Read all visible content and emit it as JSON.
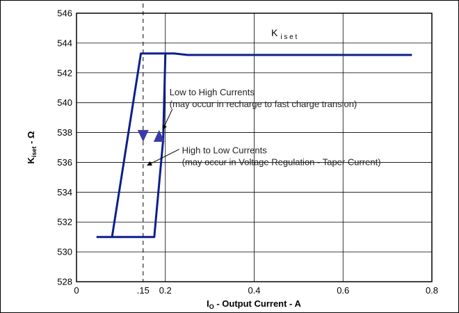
{
  "chart_data": {
    "type": "line",
    "xlim": [
      0,
      0.8
    ],
    "ylim": [
      528,
      546
    ],
    "x_ticks": [
      {
        "value": 0,
        "label": "0"
      },
      {
        "value": 0.15,
        "label": ".15"
      },
      {
        "value": 0.2,
        "label": "0.2"
      },
      {
        "value": 0.4,
        "label": "0.4"
      },
      {
        "value": 0.6,
        "label": "0.6"
      },
      {
        "value": 0.8,
        "label": "0.8"
      }
    ],
    "y_ticks": [
      528,
      530,
      532,
      534,
      536,
      538,
      540,
      542,
      544,
      546
    ],
    "xlabel": {
      "main": "I",
      "sub": "O",
      "rest": " - Output Current - A"
    },
    "ylabel": {
      "main": "K",
      "sub": "iset",
      "rest": " - Ω"
    },
    "grid": true,
    "legend": {
      "main": "K",
      "sub": "i s e t",
      "placement": "top-right"
    },
    "marker_line_x": 0.15,
    "series": [
      {
        "points": [
          [
            0.045,
            531.0
          ],
          [
            0.08,
            531.0
          ],
          [
            0.145,
            543.3
          ],
          [
            0.22,
            543.3
          ],
          [
            0.25,
            543.2
          ],
          [
            0.755,
            543.2
          ]
        ],
        "color": "#0b1f8a"
      },
      {
        "points": [
          [
            0.08,
            531.0
          ],
          [
            0.175,
            531.0
          ],
          [
            0.195,
            537.5
          ],
          [
            0.2,
            543.3
          ]
        ],
        "color": "#0b1f8a"
      }
    ],
    "arrows": [
      {
        "x": 0.15,
        "y": 537.8,
        "direction": "down",
        "color": "#3a3aa8"
      },
      {
        "x": 0.186,
        "y": 537.8,
        "direction": "up",
        "color": "#3a3aa8"
      }
    ],
    "annotations": [
      {
        "lines": [
          "Low to High Currents",
          "(may occur in recharge to fast charge transion)"
        ],
        "anchor": [
          0.2,
          540.5
        ],
        "pointer_to": [
          0.188,
          538.2
        ]
      },
      {
        "lines": [
          "High to Low Currents",
          "(may occur in Voltage Regulation - Taper Current)"
        ],
        "anchor": [
          0.228,
          536.6
        ],
        "pointer_to": [
          0.153,
          535.8
        ]
      }
    ]
  }
}
